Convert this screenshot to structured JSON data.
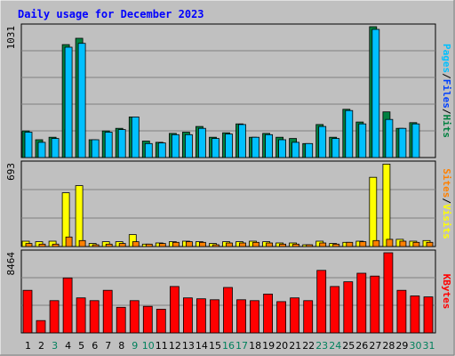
{
  "title": "Daily usage for December 2023",
  "colors": {
    "frame": "#c0c0c0",
    "plot_bg": "#c0c0c0",
    "title": "#0000ff",
    "hits": "#008040",
    "files": "#0040ff",
    "pages": "#00c0ff",
    "sites": "#ff8000",
    "visits": "#ffff00",
    "kbytes": "#ff0000",
    "weekday": "#000000",
    "weekend": "#00805c"
  },
  "chart_data": [
    {
      "type": "bar",
      "panel": "hits_files_pages",
      "ymax_label": "1031",
      "ylim": [
        0,
        1031
      ],
      "grid": true,
      "categories": [
        "1",
        "2",
        "3",
        "4",
        "5",
        "6",
        "7",
        "8",
        "9",
        "10",
        "11",
        "12",
        "13",
        "14",
        "15",
        "16",
        "17",
        "18",
        "19",
        "20",
        "21",
        "22",
        "23",
        "24",
        "25",
        "26",
        "27",
        "28",
        "29",
        "30",
        "31"
      ],
      "series": [
        {
          "name": "Hits",
          "color_key": "hits",
          "values": [
            210,
            140,
            160,
            890,
            940,
            140,
            210,
            230,
            320,
            130,
            120,
            190,
            200,
            245,
            160,
            195,
            265,
            160,
            190,
            160,
            150,
            110,
            260,
            160,
            380,
            280,
            1031,
            360,
            230,
            275,
            0
          ]
        },
        {
          "name": "Files",
          "color_key": "files",
          "values": [
            0,
            0,
            0,
            220,
            0,
            0,
            0,
            0,
            0,
            0,
            0,
            0,
            0,
            0,
            0,
            0,
            0,
            0,
            0,
            0,
            0,
            0,
            0,
            0,
            0,
            0,
            0,
            0,
            0,
            0,
            0
          ]
        },
        {
          "name": "Pages",
          "color_key": "pages",
          "values": [
            200,
            120,
            150,
            870,
            900,
            140,
            200,
            220,
            320,
            110,
            115,
            180,
            180,
            230,
            150,
            185,
            260,
            160,
            180,
            140,
            120,
            110,
            245,
            150,
            370,
            265,
            1010,
            300,
            230,
            265,
            0
          ]
        }
      ],
      "axis_title_parts": [
        "Pages",
        "/",
        "Files",
        "/",
        "Hits"
      ]
    },
    {
      "type": "bar",
      "panel": "sites_visits",
      "ymax_label": "693",
      "ylim": [
        0,
        693
      ],
      "grid": true,
      "categories": [
        "1",
        "2",
        "3",
        "4",
        "5",
        "6",
        "7",
        "8",
        "9",
        "10",
        "11",
        "12",
        "13",
        "14",
        "15",
        "16",
        "17",
        "18",
        "19",
        "20",
        "21",
        "22",
        "23",
        "24",
        "25",
        "26",
        "27",
        "28",
        "29",
        "30",
        "31"
      ],
      "series": [
        {
          "name": "Visits",
          "color_key": "visits",
          "values": [
            45,
            40,
            45,
            450,
            510,
            25,
            40,
            40,
            100,
            20,
            30,
            40,
            45,
            40,
            25,
            40,
            40,
            45,
            40,
            30,
            30,
            15,
            45,
            25,
            35,
            45,
            580,
            690,
            60,
            45,
            50
          ]
        },
        {
          "name": "Sites",
          "color_key": "sites",
          "values": [
            25,
            20,
            20,
            80,
            50,
            15,
            20,
            25,
            40,
            20,
            25,
            35,
            40,
            35,
            15,
            30,
            30,
            35,
            30,
            20,
            20,
            15,
            30,
            20,
            35,
            40,
            50,
            60,
            45,
            35,
            35
          ]
        }
      ],
      "axis_title_parts": [
        "Sites",
        "/",
        "Visits"
      ]
    },
    {
      "type": "bar",
      "panel": "kbytes",
      "ymax_label": "8464",
      "ylim": [
        0,
        8464
      ],
      "grid": true,
      "categories": [
        "1",
        "2",
        "3",
        "4",
        "5",
        "6",
        "7",
        "8",
        "9",
        "10",
        "11",
        "12",
        "13",
        "14",
        "15",
        "16",
        "17",
        "18",
        "19",
        "20",
        "21",
        "22",
        "23",
        "24",
        "25",
        "26",
        "27",
        "28",
        "29",
        "30",
        "31"
      ],
      "series": [
        {
          "name": "KBytes",
          "color_key": "kbytes",
          "values": [
            4500,
            1300,
            3400,
            5800,
            3700,
            3400,
            4500,
            2700,
            3400,
            2800,
            2500,
            4900,
            3700,
            3600,
            3500,
            4800,
            3500,
            3400,
            4100,
            3300,
            3700,
            3400,
            6600,
            4900,
            5400,
            6300,
            6000,
            8464,
            4500,
            3900,
            3800
          ]
        }
      ],
      "axis_title_parts": [
        "KBytes"
      ]
    }
  ],
  "x_labels": [
    {
      "text": "1",
      "weekend": false
    },
    {
      "text": "2",
      "weekend": false
    },
    {
      "text": "3",
      "weekend": true
    },
    {
      "text": "4",
      "weekend": false
    },
    {
      "text": "5",
      "weekend": false
    },
    {
      "text": "6",
      "weekend": false
    },
    {
      "text": "7",
      "weekend": false
    },
    {
      "text": "8",
      "weekend": false
    },
    {
      "text": "9",
      "weekend": true
    },
    {
      "text": "10",
      "weekend": true
    },
    {
      "text": "11",
      "weekend": false
    },
    {
      "text": "12",
      "weekend": false
    },
    {
      "text": "13",
      "weekend": false
    },
    {
      "text": "14",
      "weekend": false
    },
    {
      "text": "15",
      "weekend": false
    },
    {
      "text": "16",
      "weekend": true
    },
    {
      "text": "17",
      "weekend": true
    },
    {
      "text": "18",
      "weekend": false
    },
    {
      "text": "19",
      "weekend": false
    },
    {
      "text": "20",
      "weekend": false
    },
    {
      "text": "21",
      "weekend": false
    },
    {
      "text": "22",
      "weekend": false
    },
    {
      "text": "23",
      "weekend": true
    },
    {
      "text": "24",
      "weekend": true
    },
    {
      "text": "25",
      "weekend": false
    },
    {
      "text": "26",
      "weekend": false
    },
    {
      "text": "27",
      "weekend": false
    },
    {
      "text": "28",
      "weekend": false
    },
    {
      "text": "29",
      "weekend": false
    },
    {
      "text": "30",
      "weekend": true
    },
    {
      "text": "31",
      "weekend": true
    }
  ]
}
